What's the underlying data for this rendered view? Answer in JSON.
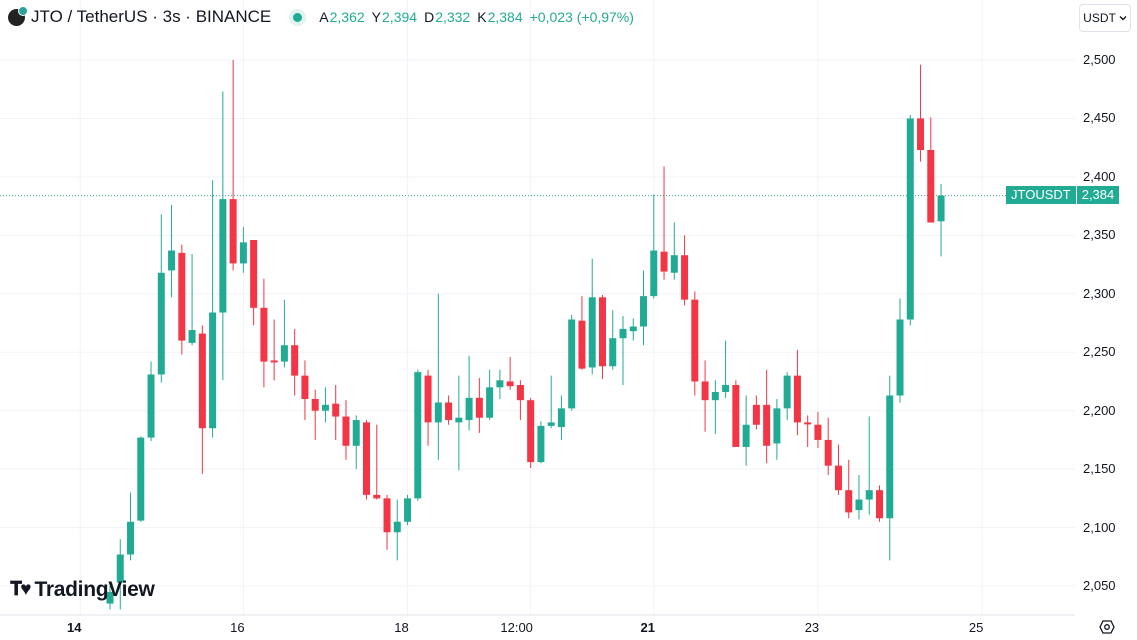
{
  "header": {
    "title": "JTO / TetherUS · 3s · BINANCE",
    "ohlc": [
      {
        "key": "A",
        "value": "2,362"
      },
      {
        "key": "Y",
        "value": "2,394"
      },
      {
        "key": "D",
        "value": "2,332"
      },
      {
        "key": "K",
        "value": "2,384"
      }
    ],
    "change": "+0,023 (+0,97%)"
  },
  "currency_button": {
    "label": "USDT",
    "icon": "chevron-down-icon"
  },
  "price_tag": {
    "symbol": "JTOUSDT",
    "price": "2,384"
  },
  "logo": {
    "text": "TradingView",
    "mark": "TV"
  },
  "colors": {
    "up": "#22ab94",
    "down": "#f23645",
    "grid": "#f0f3fa"
  },
  "chart_data": {
    "type": "candlestick",
    "ylim": [
      2.028,
      2.52
    ],
    "last_price": 2.384,
    "y_ticks": [
      "2,500",
      "2,450",
      "2,400",
      "2,350",
      "2,300",
      "2,250",
      "2,200",
      "2,150",
      "2,100",
      "2,050"
    ],
    "y_tick_values": [
      2.5,
      2.45,
      2.4,
      2.35,
      2.3,
      2.25,
      2.2,
      2.15,
      2.1,
      2.05
    ],
    "x_ticks": [
      {
        "label": "14",
        "index": -2.9,
        "bold": true
      },
      {
        "label": "16",
        "index": 13,
        "bold": false
      },
      {
        "label": "18",
        "index": 29,
        "bold": false
      },
      {
        "label": "12:00",
        "index": 41,
        "bold": false
      },
      {
        "label": "21",
        "index": 53,
        "bold": true
      },
      {
        "label": "23",
        "index": 69,
        "bold": false
      },
      {
        "label": "25",
        "index": 85,
        "bold": false
      }
    ],
    "candles": [
      [
        2.035,
        2.05,
        2.03,
        2.045
      ],
      [
        2.053,
        2.09,
        2.03,
        2.077
      ],
      [
        2.077,
        2.13,
        2.072,
        2.105
      ],
      [
        2.106,
        2.178,
        2.105,
        2.177
      ],
      [
        2.177,
        2.242,
        2.174,
        2.231
      ],
      [
        2.231,
        2.368,
        2.224,
        2.318
      ],
      [
        2.32,
        2.376,
        2.297,
        2.337
      ],
      [
        2.335,
        2.342,
        2.248,
        2.26
      ],
      [
        2.258,
        2.334,
        2.256,
        2.269
      ],
      [
        2.266,
        2.273,
        2.146,
        2.185
      ],
      [
        2.185,
        2.397,
        2.177,
        2.284
      ],
      [
        2.284,
        2.473,
        2.226,
        2.381
      ],
      [
        2.381,
        2.5,
        2.32,
        2.326
      ],
      [
        2.326,
        2.357,
        2.318,
        2.344
      ],
      [
        2.346,
        2.346,
        2.273,
        2.288
      ],
      [
        2.288,
        2.313,
        2.22,
        2.242
      ],
      [
        2.243,
        2.278,
        2.226,
        2.242
      ],
      [
        2.242,
        2.295,
        2.237,
        2.256
      ],
      [
        2.256,
        2.27,
        2.213,
        2.23
      ],
      [
        2.23,
        2.243,
        2.192,
        2.21
      ],
      [
        2.21,
        2.218,
        2.175,
        2.2
      ],
      [
        2.2,
        2.22,
        2.19,
        2.205
      ],
      [
        2.206,
        2.222,
        2.175,
        2.195
      ],
      [
        2.195,
        2.209,
        2.158,
        2.17
      ],
      [
        2.17,
        2.196,
        2.15,
        2.192
      ],
      [
        2.19,
        2.192,
        2.124,
        2.128
      ],
      [
        2.128,
        2.188,
        2.124,
        2.125
      ],
      [
        2.125,
        2.128,
        2.081,
        2.096
      ],
      [
        2.096,
        2.124,
        2.072,
        2.105
      ],
      [
        2.105,
        2.128,
        2.102,
        2.125
      ],
      [
        2.125,
        2.235,
        2.123,
        2.233
      ],
      [
        2.23,
        2.235,
        2.17,
        2.19
      ],
      [
        2.19,
        2.3,
        2.158,
        2.207
      ],
      [
        2.207,
        2.213,
        2.188,
        2.192
      ],
      [
        2.19,
        2.23,
        2.149,
        2.194
      ],
      [
        2.192,
        2.247,
        2.183,
        2.211
      ],
      [
        2.211,
        2.228,
        2.181,
        2.194
      ],
      [
        2.194,
        2.235,
        2.192,
        2.22
      ],
      [
        2.22,
        2.235,
        2.21,
        2.226
      ],
      [
        2.225,
        2.246,
        2.218,
        2.221
      ],
      [
        2.222,
        2.226,
        2.192,
        2.209
      ],
      [
        2.209,
        2.211,
        2.151,
        2.156
      ],
      [
        2.156,
        2.191,
        2.155,
        2.187
      ],
      [
        2.187,
        2.23,
        2.185,
        2.19
      ],
      [
        2.186,
        2.213,
        2.175,
        2.202
      ],
      [
        2.202,
        2.282,
        2.2,
        2.278
      ],
      [
        2.277,
        2.298,
        2.235,
        2.236
      ],
      [
        2.237,
        2.33,
        2.231,
        2.297
      ],
      [
        2.297,
        2.299,
        2.227,
        2.238
      ],
      [
        2.238,
        2.286,
        2.235,
        2.262
      ],
      [
        2.262,
        2.281,
        2.222,
        2.27
      ],
      [
        2.268,
        2.279,
        2.26,
        2.272
      ],
      [
        2.272,
        2.32,
        2.256,
        2.298
      ],
      [
        2.298,
        2.385,
        2.296,
        2.337
      ],
      [
        2.336,
        2.409,
        2.312,
        2.319
      ],
      [
        2.318,
        2.361,
        2.312,
        2.333
      ],
      [
        2.333,
        2.35,
        2.29,
        2.295
      ],
      [
        2.295,
        2.302,
        2.213,
        2.225
      ],
      [
        2.225,
        2.243,
        2.182,
        2.209
      ],
      [
        2.209,
        2.226,
        2.18,
        2.216
      ],
      [
        2.216,
        2.26,
        2.211,
        2.222
      ],
      [
        2.222,
        2.226,
        2.169,
        2.169
      ],
      [
        2.169,
        2.213,
        2.153,
        2.188
      ],
      [
        2.205,
        2.213,
        2.184,
        2.188
      ],
      [
        2.205,
        2.235,
        2.155,
        2.17
      ],
      [
        2.172,
        2.21,
        2.158,
        2.202
      ],
      [
        2.202,
        2.233,
        2.192,
        2.23
      ],
      [
        2.23,
        2.252,
        2.179,
        2.19
      ],
      [
        2.19,
        2.196,
        2.169,
        2.189
      ],
      [
        2.188,
        2.199,
        2.168,
        2.175
      ],
      [
        2.175,
        2.194,
        2.145,
        2.153
      ],
      [
        2.153,
        2.171,
        2.128,
        2.132
      ],
      [
        2.132,
        2.158,
        2.108,
        2.113
      ],
      [
        2.115,
        2.145,
        2.107,
        2.124
      ],
      [
        2.124,
        2.195,
        2.111,
        2.132
      ],
      [
        2.132,
        2.136,
        2.105,
        2.108
      ],
      [
        2.108,
        2.23,
        2.072,
        2.213
      ],
      [
        2.213,
        2.296,
        2.207,
        2.278
      ],
      [
        2.278,
        2.453,
        2.273,
        2.45
      ],
      [
        2.45,
        2.496,
        2.413,
        2.423
      ],
      [
        2.423,
        2.451,
        2.361,
        2.361
      ],
      [
        2.362,
        2.394,
        2.332,
        2.384
      ]
    ]
  }
}
